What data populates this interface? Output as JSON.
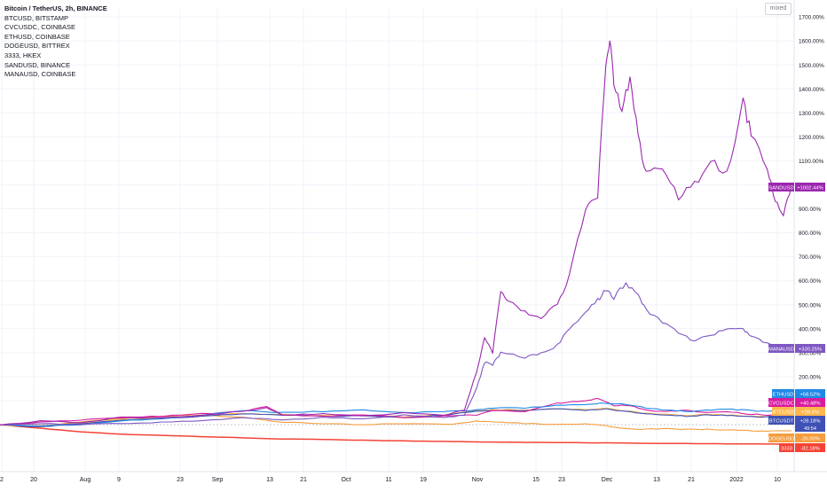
{
  "chart_data": {
    "type": "line",
    "percent_scale": true,
    "legend_lines": [
      "Bitcoin / TetherUS, 2h, BINANCE",
      "BTCUSD, BITSTAMP",
      "CVCUSDC, COINBASE",
      "ETHUSD, COINBASE",
      "DOGEUSD, BITTREX",
      "3333, HKEX",
      "SANDUSD, BINANCE",
      "MANAUSD, COINBASE"
    ],
    "mode_button": "mixed",
    "x_ticks": [
      "2",
      "20",
      "Aug",
      "9",
      "23",
      "Sep",
      "13",
      "21",
      "Oct",
      "11",
      "19",
      "Nov",
      "15",
      "23",
      "Dec",
      "13",
      "21",
      "2022",
      "10"
    ],
    "y_ticks": [
      "1700.00%",
      "1600.00%",
      "1500.00%",
      "1400.00%",
      "1300.00%",
      "1200.00%",
      "1100.00%",
      "1000.00%",
      "900.00%",
      "800.00%",
      "700.00%",
      "600.00%",
      "500.00%",
      "400.00%",
      "300.00%",
      "200.00%",
      "100.00%"
    ],
    "y_tick_values": [
      1700,
      1600,
      1500,
      1400,
      1300,
      1200,
      1100,
      1000,
      900,
      800,
      700,
      600,
      500,
      400,
      300,
      200,
      100
    ],
    "ylim": [
      -115,
      1720
    ],
    "x_count": 190,
    "series": [
      {
        "name": "SANDUSD",
        "label": "SANDUSD",
        "value_label": "+1002.44%",
        "color": "#9c27b0",
        "anchors": [
          [
            0,
            0
          ],
          [
            10,
            15
          ],
          [
            20,
            8
          ],
          [
            30,
            30
          ],
          [
            40,
            28
          ],
          [
            50,
            40
          ],
          [
            60,
            55
          ],
          [
            66,
            70
          ],
          [
            70,
            40
          ],
          [
            80,
            45
          ],
          [
            90,
            35
          ],
          [
            100,
            50
          ],
          [
            110,
            40
          ],
          [
            115,
            60
          ],
          [
            118,
            220
          ],
          [
            120,
            360
          ],
          [
            122,
            300
          ],
          [
            124,
            560
          ],
          [
            126,
            510
          ],
          [
            130,
            470
          ],
          [
            134,
            450
          ],
          [
            138,
            500
          ],
          [
            141,
            620
          ],
          [
            145,
            900
          ],
          [
            148,
            950
          ],
          [
            150,
            1500
          ],
          [
            151,
            1610
          ],
          [
            152,
            1420
          ],
          [
            154,
            1300
          ],
          [
            156,
            1450
          ],
          [
            158,
            1200
          ],
          [
            160,
            1050
          ],
          [
            164,
            1080
          ],
          [
            168,
            950
          ],
          [
            172,
            1000
          ],
          [
            176,
            1100
          ],
          [
            180,
            1040
          ],
          [
            184,
            1350
          ],
          [
            186,
            1210
          ],
          [
            190,
            1060
          ],
          [
            192,
            940
          ],
          [
            194,
            880
          ],
          [
            196,
            1002
          ]
        ]
      },
      {
        "name": "MANAUSD",
        "label": "MANAUSD",
        "value_label": "+330.25%",
        "color": "#7e57c2",
        "anchors": [
          [
            0,
            0
          ],
          [
            10,
            5
          ],
          [
            20,
            0
          ],
          [
            30,
            5
          ],
          [
            40,
            10
          ],
          [
            50,
            15
          ],
          [
            60,
            30
          ],
          [
            70,
            20
          ],
          [
            80,
            30
          ],
          [
            90,
            25
          ],
          [
            100,
            40
          ],
          [
            110,
            30
          ],
          [
            115,
            40
          ],
          [
            118,
            150
          ],
          [
            120,
            260
          ],
          [
            122,
            250
          ],
          [
            124,
            300
          ],
          [
            130,
            280
          ],
          [
            134,
            300
          ],
          [
            138,
            330
          ],
          [
            141,
            400
          ],
          [
            145,
            470
          ],
          [
            148,
            520
          ],
          [
            150,
            560
          ],
          [
            152,
            530
          ],
          [
            155,
            590
          ],
          [
            158,
            540
          ],
          [
            160,
            480
          ],
          [
            164,
            430
          ],
          [
            168,
            380
          ],
          [
            172,
            350
          ],
          [
            176,
            370
          ],
          [
            180,
            400
          ],
          [
            184,
            400
          ],
          [
            186,
            370
          ],
          [
            190,
            340
          ],
          [
            194,
            310
          ],
          [
            196,
            330
          ]
        ]
      },
      {
        "name": "ETHUSD",
        "label": "ETHUSD",
        "value_label": "+58.52%",
        "color": "#1e88e5",
        "anchors": [
          [
            0,
            0
          ],
          [
            10,
            -5
          ],
          [
            20,
            0
          ],
          [
            30,
            15
          ],
          [
            40,
            25
          ],
          [
            50,
            40
          ],
          [
            60,
            60
          ],
          [
            70,
            50
          ],
          [
            80,
            55
          ],
          [
            90,
            60
          ],
          [
            100,
            50
          ],
          [
            110,
            55
          ],
          [
            118,
            60
          ],
          [
            122,
            70
          ],
          [
            130,
            70
          ],
          [
            138,
            80
          ],
          [
            145,
            85
          ],
          [
            150,
            90
          ],
          [
            155,
            85
          ],
          [
            160,
            70
          ],
          [
            165,
            60
          ],
          [
            170,
            55
          ],
          [
            175,
            60
          ],
          [
            180,
            65
          ],
          [
            185,
            60
          ],
          [
            190,
            55
          ],
          [
            196,
            58
          ]
        ]
      },
      {
        "name": "CVCUSDC",
        "label": "CVCUSDC",
        "value_label": "+40.48%",
        "color": "#d81b9f",
        "anchors": [
          [
            0,
            0
          ],
          [
            10,
            10
          ],
          [
            20,
            20
          ],
          [
            30,
            30
          ],
          [
            40,
            35
          ],
          [
            50,
            45
          ],
          [
            60,
            55
          ],
          [
            66,
            75
          ],
          [
            70,
            40
          ],
          [
            80,
            35
          ],
          [
            90,
            40
          ],
          [
            100,
            30
          ],
          [
            110,
            35
          ],
          [
            118,
            40
          ],
          [
            122,
            60
          ],
          [
            130,
            55
          ],
          [
            138,
            90
          ],
          [
            142,
            95
          ],
          [
            146,
            100
          ],
          [
            148,
            110
          ],
          [
            152,
            80
          ],
          [
            156,
            80
          ],
          [
            160,
            60
          ],
          [
            165,
            55
          ],
          [
            170,
            60
          ],
          [
            175,
            50
          ],
          [
            180,
            55
          ],
          [
            185,
            45
          ],
          [
            190,
            40
          ],
          [
            196,
            40
          ]
        ]
      },
      {
        "name": "BTCUSDT",
        "label": "BTCUSDT",
        "value_label": "+28.18%",
        "sub_label": "49:54",
        "color": "#3f51b5",
        "anchors": [
          [
            0,
            0
          ],
          [
            10,
            -10
          ],
          [
            20,
            5
          ],
          [
            30,
            20
          ],
          [
            40,
            25
          ],
          [
            50,
            35
          ],
          [
            60,
            45
          ],
          [
            70,
            40
          ],
          [
            80,
            35
          ],
          [
            90,
            38
          ],
          [
            100,
            30
          ],
          [
            110,
            40
          ],
          [
            118,
            55
          ],
          [
            122,
            60
          ],
          [
            130,
            60
          ],
          [
            138,
            65
          ],
          [
            145,
            60
          ],
          [
            150,
            65
          ],
          [
            155,
            55
          ],
          [
            160,
            45
          ],
          [
            165,
            40
          ],
          [
            170,
            35
          ],
          [
            175,
            40
          ],
          [
            180,
            38
          ],
          [
            185,
            35
          ],
          [
            190,
            32
          ],
          [
            196,
            28
          ]
        ]
      },
      {
        "name": "BTCUSD",
        "label": "BTCUSD",
        "value_label": "+28.4%",
        "color": "#ffb74d",
        "anchors": [
          [
            0,
            0
          ],
          [
            10,
            -8
          ],
          [
            20,
            5
          ],
          [
            30,
            22
          ],
          [
            40,
            27
          ],
          [
            50,
            37
          ],
          [
            60,
            47
          ],
          [
            70,
            42
          ],
          [
            80,
            37
          ],
          [
            90,
            40
          ],
          [
            100,
            32
          ],
          [
            110,
            42
          ],
          [
            118,
            58
          ],
          [
            122,
            62
          ],
          [
            130,
            62
          ],
          [
            138,
            67
          ],
          [
            145,
            62
          ],
          [
            150,
            67
          ],
          [
            155,
            57
          ],
          [
            160,
            47
          ],
          [
            165,
            42
          ],
          [
            170,
            37
          ],
          [
            175,
            42
          ],
          [
            180,
            40
          ],
          [
            185,
            37
          ],
          [
            190,
            34
          ],
          [
            196,
            29
          ]
        ]
      },
      {
        "name": "DOGEUSD",
        "label": "DOGEUSD",
        "value_label": "-26.00%",
        "color": "#f59d3d",
        "anchors": [
          [
            0,
            0
          ],
          [
            10,
            -5
          ],
          [
            20,
            10
          ],
          [
            30,
            25
          ],
          [
            40,
            35
          ],
          [
            50,
            40
          ],
          [
            60,
            30
          ],
          [
            70,
            10
          ],
          [
            80,
            5
          ],
          [
            90,
            0
          ],
          [
            100,
            5
          ],
          [
            110,
            0
          ],
          [
            118,
            15
          ],
          [
            122,
            10
          ],
          [
            130,
            5
          ],
          [
            138,
            0
          ],
          [
            145,
            5
          ],
          [
            150,
            -5
          ],
          [
            155,
            -15
          ],
          [
            160,
            -20
          ],
          [
            165,
            -15
          ],
          [
            170,
            -20
          ],
          [
            175,
            -20
          ],
          [
            180,
            -22
          ],
          [
            185,
            -25
          ],
          [
            190,
            -26
          ],
          [
            196,
            -26
          ]
        ]
      },
      {
        "name": "3333",
        "label": "3333",
        "value_label": "-82.18%",
        "color": "#f44336",
        "anchors": [
          [
            0,
            0
          ],
          [
            10,
            -15
          ],
          [
            20,
            -30
          ],
          [
            30,
            -40
          ],
          [
            40,
            -45
          ],
          [
            50,
            -50
          ],
          [
            60,
            -55
          ],
          [
            70,
            -60
          ],
          [
            80,
            -62
          ],
          [
            90,
            -65
          ],
          [
            100,
            -68
          ],
          [
            110,
            -70
          ],
          [
            118,
            -72
          ],
          [
            125,
            -73
          ],
          [
            130,
            -74
          ],
          [
            140,
            -75
          ],
          [
            150,
            -76
          ],
          [
            160,
            -78
          ],
          [
            170,
            -79
          ],
          [
            180,
            -80
          ],
          [
            190,
            -81
          ],
          [
            196,
            -82
          ]
        ]
      }
    ]
  }
}
